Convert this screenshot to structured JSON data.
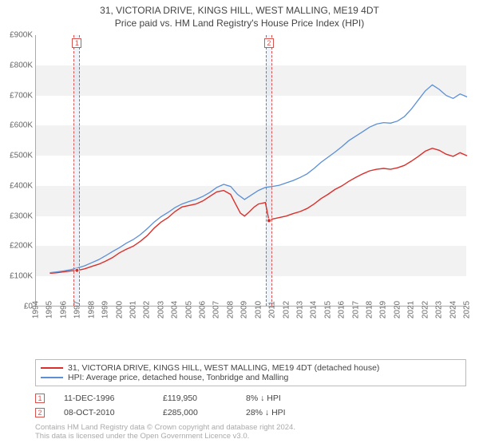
{
  "titles": {
    "line1": "31, VICTORIA DRIVE, KINGS HILL, WEST MALLING, ME19 4DT",
    "line2": "Price paid vs. HM Land Registry's House Price Index (HPI)"
  },
  "chart": {
    "type": "line",
    "background_color": "#ffffff",
    "band_color": "#f2f2f2",
    "axis_color": "#aaaaaa",
    "text_color": "#666666",
    "xlim": [
      1994,
      2025
    ],
    "ylim": [
      0,
      900
    ],
    "ytick_step": 100,
    "y_prefix": "£",
    "y_suffix": "K",
    "xticks": [
      1994,
      1995,
      1996,
      1997,
      1998,
      1999,
      2000,
      2001,
      2002,
      2003,
      2004,
      2005,
      2006,
      2007,
      2008,
      2009,
      2010,
      2011,
      2012,
      2013,
      2014,
      2015,
      2016,
      2017,
      2018,
      2019,
      2020,
      2021,
      2022,
      2023,
      2024,
      2025
    ],
    "series": [
      {
        "name": "31, VICTORIA DRIVE, KINGS HILL, WEST MALLING, ME19 4DT (detached house)",
        "color": "#d9302c",
        "line_width": 1.4,
        "data": [
          [
            1995.0,
            110
          ],
          [
            1995.5,
            112
          ],
          [
            1996.0,
            115
          ],
          [
            1996.5,
            118
          ],
          [
            1996.95,
            119.95
          ],
          [
            1997.0,
            120
          ],
          [
            1997.5,
            125
          ],
          [
            1998.0,
            133
          ],
          [
            1998.5,
            140
          ],
          [
            1999.0,
            150
          ],
          [
            1999.5,
            162
          ],
          [
            2000.0,
            178
          ],
          [
            2000.5,
            190
          ],
          [
            2001.0,
            200
          ],
          [
            2001.5,
            216
          ],
          [
            2002.0,
            235
          ],
          [
            2002.5,
            260
          ],
          [
            2003.0,
            280
          ],
          [
            2003.5,
            295
          ],
          [
            2004.0,
            315
          ],
          [
            2004.5,
            330
          ],
          [
            2005.0,
            335
          ],
          [
            2005.5,
            340
          ],
          [
            2006.0,
            350
          ],
          [
            2006.5,
            365
          ],
          [
            2007.0,
            380
          ],
          [
            2007.5,
            385
          ],
          [
            2008.0,
            372
          ],
          [
            2008.3,
            345
          ],
          [
            2008.7,
            310
          ],
          [
            2009.0,
            300
          ],
          [
            2009.3,
            312
          ],
          [
            2009.7,
            330
          ],
          [
            2010.0,
            340
          ],
          [
            2010.5,
            345
          ],
          [
            2010.76,
            285
          ],
          [
            2011.0,
            290
          ],
          [
            2011.5,
            295
          ],
          [
            2012.0,
            300
          ],
          [
            2012.5,
            308
          ],
          [
            2013.0,
            315
          ],
          [
            2013.5,
            325
          ],
          [
            2014.0,
            340
          ],
          [
            2014.5,
            358
          ],
          [
            2015.0,
            372
          ],
          [
            2015.5,
            388
          ],
          [
            2016.0,
            400
          ],
          [
            2016.5,
            415
          ],
          [
            2017.0,
            428
          ],
          [
            2017.5,
            440
          ],
          [
            2018.0,
            450
          ],
          [
            2018.5,
            455
          ],
          [
            2019.0,
            458
          ],
          [
            2019.5,
            455
          ],
          [
            2020.0,
            460
          ],
          [
            2020.5,
            468
          ],
          [
            2021.0,
            482
          ],
          [
            2021.5,
            498
          ],
          [
            2022.0,
            515
          ],
          [
            2022.5,
            525
          ],
          [
            2023.0,
            518
          ],
          [
            2023.5,
            505
          ],
          [
            2024.0,
            498
          ],
          [
            2024.5,
            510
          ],
          [
            2025.0,
            500
          ]
        ]
      },
      {
        "name": "HPI: Average price, detached house, Tonbridge and Malling",
        "color": "#5b8fd6",
        "line_width": 1.3,
        "data": [
          [
            1995.0,
            112
          ],
          [
            1995.5,
            115
          ],
          [
            1996.0,
            118
          ],
          [
            1996.5,
            122
          ],
          [
            1997.0,
            128
          ],
          [
            1997.5,
            135
          ],
          [
            1998.0,
            145
          ],
          [
            1998.5,
            155
          ],
          [
            1999.0,
            168
          ],
          [
            1999.5,
            182
          ],
          [
            2000.0,
            195
          ],
          [
            2000.5,
            210
          ],
          [
            2001.0,
            222
          ],
          [
            2001.5,
            238
          ],
          [
            2002.0,
            258
          ],
          [
            2002.5,
            280
          ],
          [
            2003.0,
            298
          ],
          [
            2003.5,
            312
          ],
          [
            2004.0,
            328
          ],
          [
            2004.5,
            340
          ],
          [
            2005.0,
            348
          ],
          [
            2005.5,
            355
          ],
          [
            2006.0,
            365
          ],
          [
            2006.5,
            378
          ],
          [
            2007.0,
            395
          ],
          [
            2007.5,
            405
          ],
          [
            2008.0,
            398
          ],
          [
            2008.5,
            372
          ],
          [
            2009.0,
            355
          ],
          [
            2009.5,
            370
          ],
          [
            2010.0,
            385
          ],
          [
            2010.5,
            395
          ],
          [
            2011.0,
            398
          ],
          [
            2011.5,
            402
          ],
          [
            2012.0,
            410
          ],
          [
            2012.5,
            418
          ],
          [
            2013.0,
            428
          ],
          [
            2013.5,
            440
          ],
          [
            2014.0,
            458
          ],
          [
            2014.5,
            478
          ],
          [
            2015.0,
            495
          ],
          [
            2015.5,
            512
          ],
          [
            2016.0,
            530
          ],
          [
            2016.5,
            550
          ],
          [
            2017.0,
            565
          ],
          [
            2017.5,
            580
          ],
          [
            2018.0,
            595
          ],
          [
            2018.5,
            605
          ],
          [
            2019.0,
            610
          ],
          [
            2019.5,
            608
          ],
          [
            2020.0,
            615
          ],
          [
            2020.5,
            630
          ],
          [
            2021.0,
            655
          ],
          [
            2021.5,
            685
          ],
          [
            2022.0,
            715
          ],
          [
            2022.5,
            735
          ],
          [
            2023.0,
            720
          ],
          [
            2023.5,
            700
          ],
          [
            2024.0,
            690
          ],
          [
            2024.5,
            705
          ],
          [
            2025.0,
            695
          ]
        ]
      }
    ],
    "point_markers": [
      {
        "x": 1996.95,
        "y": 119.95,
        "color": "#d9302c",
        "size": 5
      },
      {
        "x": 2010.76,
        "y": 285,
        "color": "#d9302c",
        "size": 5
      }
    ],
    "vbands": [
      {
        "x": 1996.95,
        "label": "1",
        "label_color": "#d9534f",
        "band_color": "rgba(180,200,230,0.22)"
      },
      {
        "x": 2010.76,
        "label": "2",
        "label_color": "#d9534f",
        "band_color": "rgba(180,200,230,0.22)"
      }
    ]
  },
  "legend": {
    "items": [
      {
        "color": "#d9302c",
        "label": "31, VICTORIA DRIVE, KINGS HILL, WEST MALLING, ME19 4DT (detached house)"
      },
      {
        "color": "#5b8fd6",
        "label": "HPI: Average price, detached house, Tonbridge and Malling"
      }
    ]
  },
  "sale_markers": [
    {
      "num": "1",
      "date": "11-DEC-1996",
      "price": "£119,950",
      "pct": "8% ↓ HPI"
    },
    {
      "num": "2",
      "date": "08-OCT-2010",
      "price": "£285,000",
      "pct": "28% ↓ HPI"
    }
  ],
  "attribution": {
    "line1": "Contains HM Land Registry data © Crown copyright and database right 2024.",
    "line2": "This data is licensed under the Open Government Licence v3.0."
  }
}
